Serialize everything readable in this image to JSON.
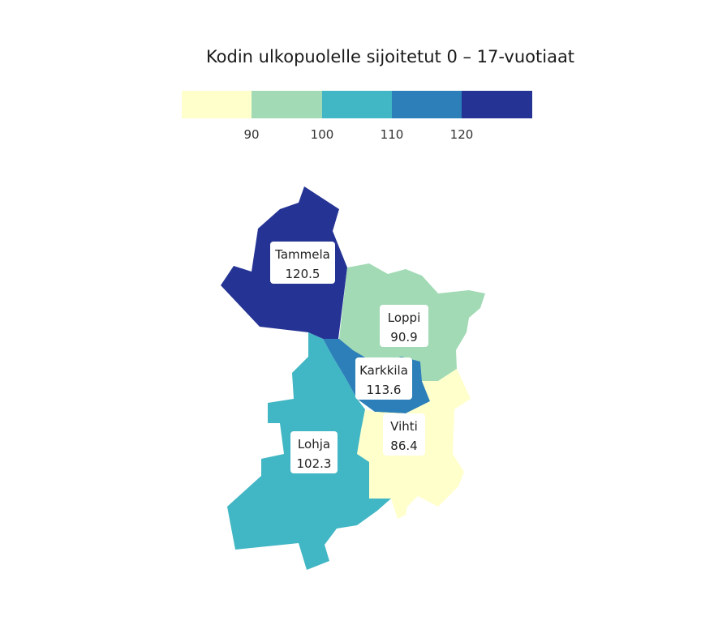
{
  "title": "Kodin ulkopuolelle sijoitetut 0 – 17-vuotiaat",
  "legend": {
    "colors": [
      "#ffffcc",
      "#a1dab4",
      "#41b6c4",
      "#2c7fb8",
      "#253494"
    ],
    "ticks": [
      "90",
      "100",
      "110",
      "120"
    ]
  },
  "regions": [
    {
      "name": "Tammela",
      "value": "120.5",
      "color": "#253494"
    },
    {
      "name": "Loppi",
      "value": "90.9",
      "color": "#a1dab4"
    },
    {
      "name": "Karkkila",
      "value": "113.6",
      "color": "#2c7fb8"
    },
    {
      "name": "Vihti",
      "value": "86.4",
      "color": "#ffffcc"
    },
    {
      "name": "Lohja",
      "value": "102.3",
      "color": "#41b6c4"
    }
  ]
}
